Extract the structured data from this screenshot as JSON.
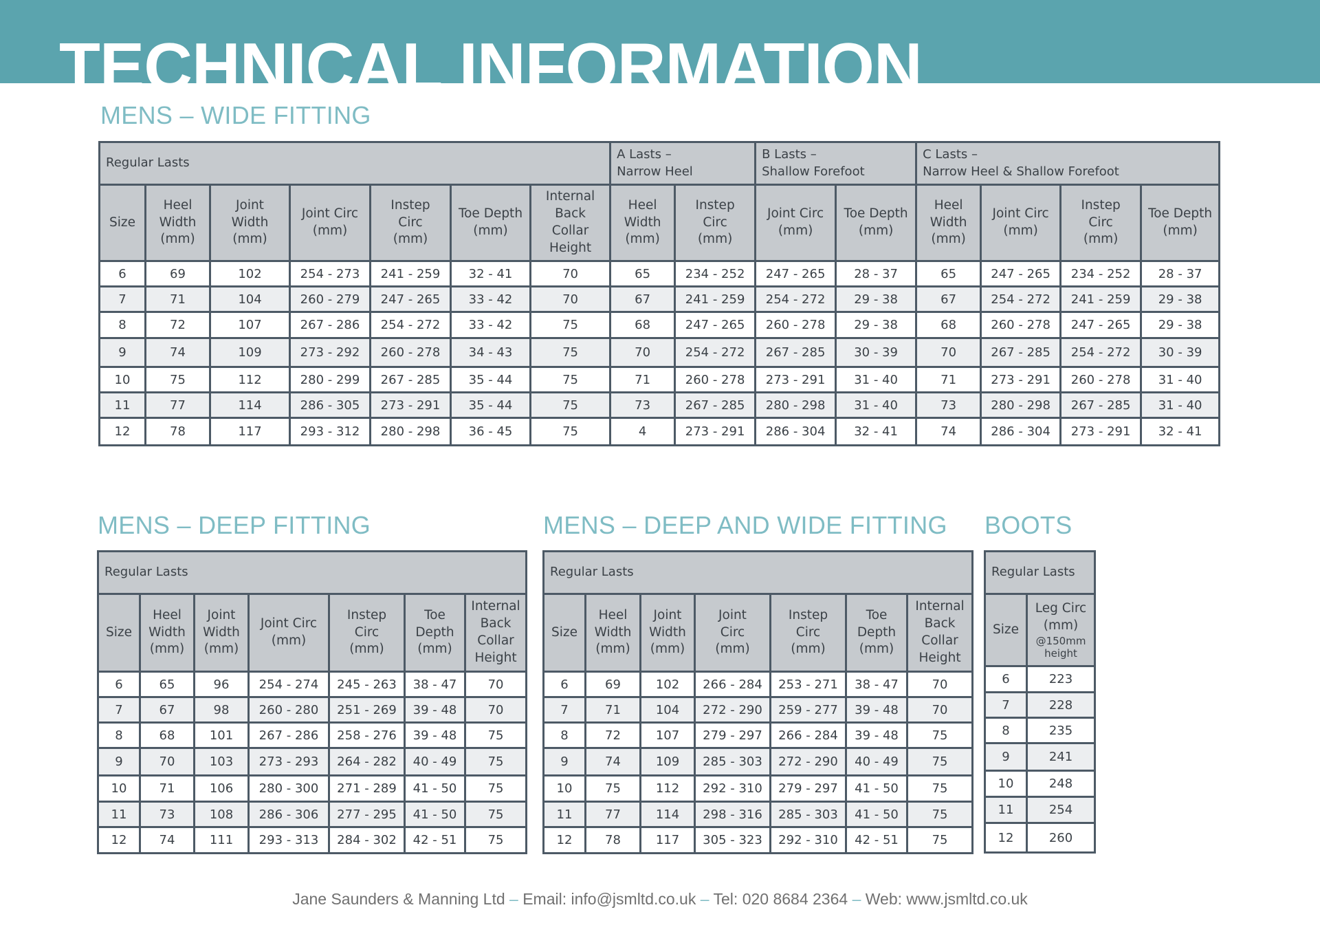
{
  "banner": {
    "title": "TECHNICAL INFORMATION"
  },
  "wide": {
    "title": "MENS – WIDE FITTING",
    "groups": [
      "Regular Lasts",
      "A Lasts –\nNarrow Heel",
      "B Lasts –\nShallow Forefoot",
      "C Lasts –\nNarrow Heel & Shallow Forefoot"
    ],
    "headers": [
      "Size",
      "Heel\nWidth\n(mm)",
      "Joint\nWidth\n(mm)",
      "Joint Circ\n(mm)",
      "Instep\nCirc\n(mm)",
      "Toe Depth\n(mm)",
      "Internal\nBack\nCollar\nHeight",
      "Heel\nWidth\n(mm)",
      "Instep\nCirc\n(mm)",
      "Joint Circ\n(mm)",
      "Toe Depth\n(mm)",
      "Heel\nWidth\n(mm)",
      "Joint Circ\n(mm)",
      "Instep\nCirc\n(mm)",
      "Toe Depth\n(mm)"
    ],
    "rows": [
      [
        "6",
        "69",
        "102",
        "254 - 273",
        "241 - 259",
        "32 - 41",
        "70",
        "65",
        "234 - 252",
        "247 - 265",
        "28 - 37",
        "65",
        "247 - 265",
        "234 - 252",
        "28 - 37"
      ],
      [
        "7",
        "71",
        "104",
        "260 - 279",
        "247 - 265",
        "33 - 42",
        "70",
        "67",
        "241 - 259",
        "254 - 272",
        "29 - 38",
        "67",
        "254 - 272",
        "241 - 259",
        "29 - 38"
      ],
      [
        "8",
        "72",
        "107",
        "267 - 286",
        "254 - 272",
        "33 - 42",
        "75",
        "68",
        "247 - 265",
        "260 - 278",
        "29 - 38",
        "68",
        "260 - 278",
        "247 - 265",
        "29 - 38"
      ],
      [
        "9",
        "74",
        "109",
        "273 - 292",
        "260 - 278",
        "34 - 43",
        "75",
        "70",
        "254 - 272",
        "267 - 285",
        "30 - 39",
        "70",
        "267 - 285",
        "254 - 272",
        "30 - 39"
      ],
      [
        "10",
        "75",
        "112",
        "280 - 299",
        "267 - 285",
        "35 - 44",
        "75",
        "71",
        "260 - 278",
        "273 - 291",
        "31 - 40",
        "71",
        "273 - 291",
        "260 - 278",
        "31 - 40"
      ],
      [
        "11",
        "77",
        "114",
        "286 - 305",
        "273 - 291",
        "35 - 44",
        "75",
        "73",
        "267 - 285",
        "280 - 298",
        "31 - 40",
        "73",
        "280 - 298",
        "267 - 285",
        "31 - 40"
      ],
      [
        "12",
        "78",
        "117",
        "293 - 312",
        "280 - 298",
        "36 - 45",
        "75",
        "4",
        "273 - 291",
        "286 - 304",
        "32 - 41",
        "74",
        "286 - 304",
        "273 - 291",
        "32 - 41"
      ]
    ]
  },
  "deep": {
    "title": "MENS – DEEP FITTING",
    "group": "Regular Lasts",
    "headers": [
      "Size",
      "Heel\nWidth\n(mm)",
      "Joint\nWidth\n(mm)",
      "Joint Circ\n(mm)",
      "Instep\nCirc\n(mm)",
      "Toe\nDepth\n(mm)",
      "Internal\nBack\nCollar\nHeight"
    ],
    "rows": [
      [
        "6",
        "65",
        "96",
        "254 - 274",
        "245 - 263",
        "38 - 47",
        "70"
      ],
      [
        "7",
        "67",
        "98",
        "260 - 280",
        "251 - 269",
        "39 - 48",
        "70"
      ],
      [
        "8",
        "68",
        "101",
        "267 - 286",
        "258 - 276",
        "39 - 48",
        "75"
      ],
      [
        "9",
        "70",
        "103",
        "273 - 293",
        "264 - 282",
        "40 - 49",
        "75"
      ],
      [
        "10",
        "71",
        "106",
        "280 - 300",
        "271 - 289",
        "41 - 50",
        "75"
      ],
      [
        "11",
        "73",
        "108",
        "286 - 306",
        "277 - 295",
        "41 - 50",
        "75"
      ],
      [
        "12",
        "74",
        "111",
        "293 - 313",
        "284 - 302",
        "42 - 51",
        "75"
      ]
    ]
  },
  "deepwide": {
    "title": "MENS – DEEP AND WIDE FITTING",
    "group": "Regular Lasts",
    "headers": [
      "Size",
      "Heel\nWidth\n(mm)",
      "Joint\nWidth\n(mm)",
      "Joint\nCirc\n(mm)",
      "Instep\nCirc\n(mm)",
      "Toe\nDepth\n(mm)",
      "Internal\nBack\nCollar\nHeight"
    ],
    "rows": [
      [
        "6",
        "69",
        "102",
        "266 - 284",
        "253 - 271",
        "38 - 47",
        "70"
      ],
      [
        "7",
        "71",
        "104",
        "272 - 290",
        "259 - 277",
        "39 - 48",
        "70"
      ],
      [
        "8",
        "72",
        "107",
        "279 - 297",
        "266 - 284",
        "39 - 48",
        "75"
      ],
      [
        "9",
        "74",
        "109",
        "285 - 303",
        "272 - 290",
        "40 - 49",
        "75"
      ],
      [
        "10",
        "75",
        "112",
        "292 - 310",
        "279 - 297",
        "41 - 50",
        "75"
      ],
      [
        "11",
        "77",
        "114",
        "298 - 316",
        "285 - 303",
        "41 - 50",
        "75"
      ],
      [
        "12",
        "78",
        "117",
        "305 - 323",
        "292 - 310",
        "42 - 51",
        "75"
      ]
    ]
  },
  "boots": {
    "title": "BOOTS",
    "group": "Regular Lasts",
    "headers": [
      "Size",
      "Leg Circ\n(mm)"
    ],
    "header_sub": "@150mm\nheight",
    "rows": [
      [
        "6",
        "223"
      ],
      [
        "7",
        "228"
      ],
      [
        "8",
        "235"
      ],
      [
        "9",
        "241"
      ],
      [
        "10",
        "248"
      ],
      [
        "11",
        "254"
      ],
      [
        "12",
        "260"
      ]
    ]
  },
  "footer": {
    "company": "Jane Saunders & Manning Ltd",
    "sep1": " – ",
    "email": "Email: info@jsmltd.co.uk",
    "sep2": " – ",
    "tel": "Tel: 020 8684 2364",
    "sep3": " – ",
    "web": "Web: www.jsmltd.co.uk"
  }
}
